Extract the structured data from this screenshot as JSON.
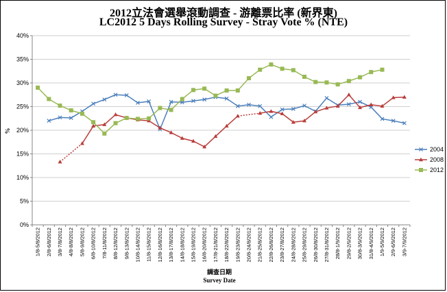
{
  "chart_data": {
    "type": "line",
    "title": "2012立法會選舉滾動調查 - 游離票比率 (新界東)",
    "subtitle": "LC2012 5 Days Rolling Survey - Stray Vote % (NTE)",
    "xlabel": "調查日期",
    "xlabel2": "Survey Date",
    "ylabel": "%",
    "ylim": [
      0,
      40
    ],
    "yticks": [
      "0%",
      "5%",
      "10%",
      "15%",
      "20%",
      "25%",
      "30%",
      "35%",
      "40%"
    ],
    "grid": true,
    "legend_position": "right",
    "categories": [
      "1/8-5/8/2012",
      "2/8-6/8/2012",
      "3/8-7/8/2012",
      "4/8-8/8/2012",
      "5/8-9/8/2012",
      "6/8-10/8/2012",
      "7/8-11/8/2012",
      "8/8-12/8/2012",
      "9/8-13/8/2012",
      "10/8-14/8/2012",
      "11/8-15/8/2012",
      "12/8-16/8/2012",
      "13/8-17/8/2012",
      "14/8-18/8/2012",
      "15/8-19/8/2012",
      "16/8-20/8/2012",
      "17/8-21/8/2012",
      "18/8-22/8/2012",
      "19/8-23/8/2012",
      "20/8-24/8/2012",
      "21/8-25/8/2012",
      "22/8-26/8/2012",
      "23/8-27/8/2012",
      "24/8-28/8/2012",
      "25/8-29/8/2012",
      "26/8-30/8/2012",
      "27/8-31/8/2012",
      "28/8-1/9/2012",
      "29/8-2/9/2012",
      "30/8-3/9/2012",
      "31/8-4/9/2012",
      "1/9-5/9/2012",
      "2/9-6/9/2012",
      "3/9-7/9/2012"
    ],
    "series": [
      {
        "name": "2004",
        "color": "#4a7ebb",
        "marker": "x",
        "values": [
          null,
          22.0,
          22.7,
          22.6,
          24.0,
          25.6,
          26.5,
          27.5,
          27.4,
          25.8,
          26.1,
          20.2,
          26.0,
          25.9,
          26.2,
          26.5,
          27.0,
          26.7,
          25.1,
          25.4,
          25.1,
          22.8,
          24.4,
          24.5,
          25.2,
          24.0,
          26.8,
          25.3,
          25.5,
          26.0,
          24.9,
          22.4,
          22.0,
          21.5
        ]
      },
      {
        "name": "2008",
        "color": "#b83d3b",
        "marker": "triangle",
        "dotted_before_index": 2,
        "dotted_gap": [
          18,
          20
        ],
        "values": [
          null,
          null,
          13.3,
          null,
          17.2,
          20.9,
          21.2,
          23.3,
          22.6,
          22.2,
          22.0,
          20.5,
          19.5,
          18.3,
          17.7,
          16.5,
          18.7,
          20.9,
          23.0,
          null,
          23.6,
          24.0,
          23.5,
          21.7,
          22.0,
          23.9,
          24.7,
          25.1,
          27.5,
          24.8,
          25.4,
          25.1,
          26.9,
          27.0
        ]
      },
      {
        "name": "2012",
        "color": "#98b954",
        "marker": "square",
        "values": [
          29.0,
          26.6,
          25.2,
          24.2,
          23.5,
          21.7,
          19.3,
          21.5,
          22.6,
          22.4,
          22.5,
          24.7,
          24.3,
          26.6,
          28.5,
          28.8,
          27.3,
          28.4,
          28.4,
          31.0,
          32.8,
          33.9,
          33.0,
          32.7,
          31.3,
          30.2,
          30.1,
          29.7,
          30.4,
          31.2,
          32.3,
          32.8,
          null,
          null
        ]
      }
    ]
  }
}
